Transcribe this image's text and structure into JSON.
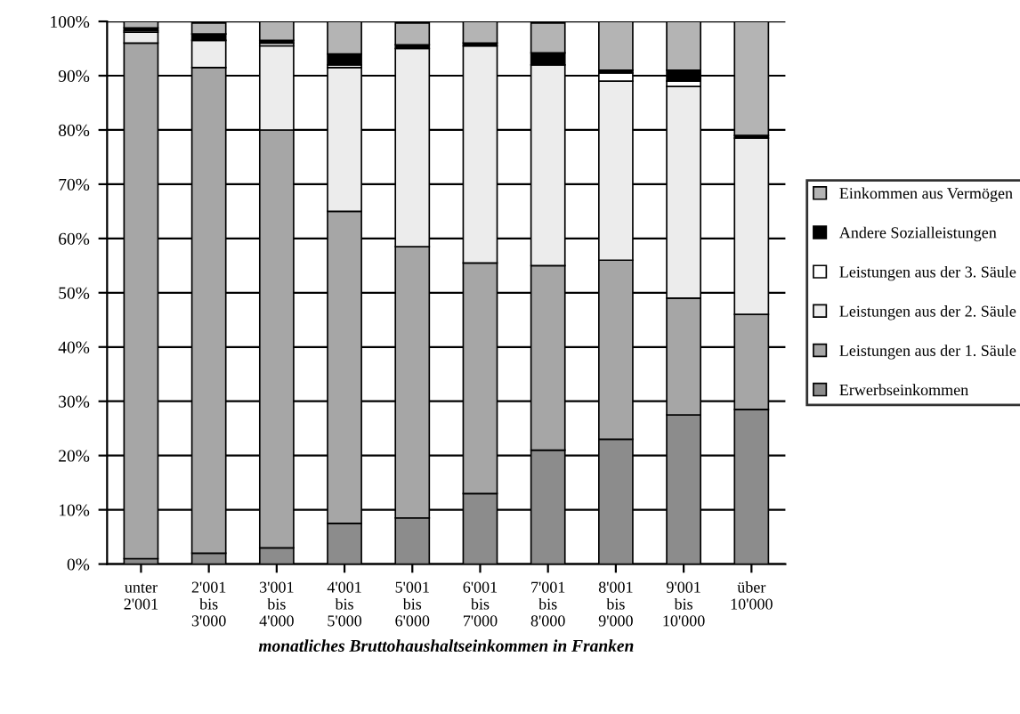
{
  "chart_data": {
    "type": "bar",
    "stacked": true,
    "categories": [
      "unter\n2'001",
      "2'001\nbis\n3'000",
      "3'001\nbis\n4'000",
      "4'001\nbis\n5'000",
      "5'001\nbis\n6'000",
      "6'001\nbis\n7'000",
      "7'001\nbis\n8'000",
      "8'001\nbis\n9'000",
      "9'001\nbis\n10'000",
      "über\n10'000"
    ],
    "xlabel": "monatliches Bruttohaushaltseinkommen in Franken",
    "series": [
      {
        "name": "Erwerbseinkommen",
        "color": "#8c8c8c",
        "values": [
          1,
          2,
          3,
          7.5,
          8.5,
          13,
          21,
          23,
          27.5,
          28.5
        ]
      },
      {
        "name": "Leistungen aus der 1. Säule",
        "color": "#a6a6a6",
        "values": [
          95,
          89.5,
          77,
          57.5,
          50,
          42.5,
          34,
          33,
          21.5,
          17.5
        ]
      },
      {
        "name": "Leistungen aus der 2. Säule",
        "color": "#ececec",
        "values": [
          2,
          5,
          15.5,
          26.5,
          36.5,
          40,
          37,
          33,
          39,
          32.5
        ]
      },
      {
        "name": "Leistungen aus der 3. Säule",
        "color": "#ffffff",
        "values": [
          0.3,
          null,
          0.5,
          0.5,
          null,
          0,
          null,
          1.5,
          1,
          0
        ]
      },
      {
        "name": "Andere Sozialleistungen",
        "color": "#000000",
        "values": [
          0.5,
          1.2,
          0.5,
          2,
          0.7,
          0.5,
          2.2,
          0.5,
          2,
          0.5
        ]
      },
      {
        "name": "Einkommen aus Vermögen",
        "color": "#b4b4b4",
        "values": [
          1.2,
          2,
          3.5,
          6,
          4,
          4,
          5.5,
          9,
          9,
          21
        ]
      }
    ],
    "ylim": [
      0,
      100
    ],
    "yticks": [
      {
        "value": 0,
        "label": "0%"
      },
      {
        "value": 10,
        "label": "10%"
      },
      {
        "value": 20,
        "label": "20%"
      },
      {
        "value": 30,
        "label": "30%"
      },
      {
        "value": 40,
        "label": "40%"
      },
      {
        "value": 50,
        "label": "50%"
      },
      {
        "value": 60,
        "label": "60%"
      },
      {
        "value": 70,
        "label": "70%"
      },
      {
        "value": 80,
        "label": "80%"
      },
      {
        "value": 90,
        "label": "90%"
      },
      {
        "value": 100,
        "label": "100%"
      }
    ],
    "grid": "y",
    "legend": "right"
  }
}
